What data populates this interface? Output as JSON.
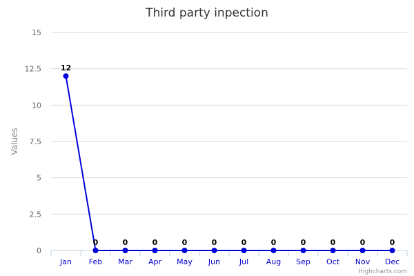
{
  "chart_data": {
    "type": "line",
    "title": "Third party inpection",
    "xlabel": "",
    "ylabel": "Values",
    "categories": [
      "Jan",
      "Feb",
      "Mar",
      "Apr",
      "May",
      "Jun",
      "Jul",
      "Aug",
      "Sep",
      "Oct",
      "Nov",
      "Dec"
    ],
    "series": [
      {
        "values": [
          12,
          0,
          0,
          0,
          0,
          0,
          0,
          0,
          0,
          0,
          0,
          0
        ],
        "color": "#0000dd"
      }
    ],
    "ylim": [
      0,
      15
    ],
    "yticks": [
      "0",
      "2.5",
      "5",
      "7.5",
      "10",
      "12.5",
      "15"
    ],
    "data_labels": [
      "12",
      "0",
      "0",
      "0",
      "0",
      "0",
      "0",
      "0",
      "0",
      "0",
      "0",
      "0"
    ],
    "grid": true,
    "legend": "none",
    "colors": {
      "series": "#0000dd",
      "xtick": "#0000cc",
      "grid": "#d8d8d8",
      "axis": "#c0d0e0"
    }
  },
  "credits": "Highcharts.com"
}
